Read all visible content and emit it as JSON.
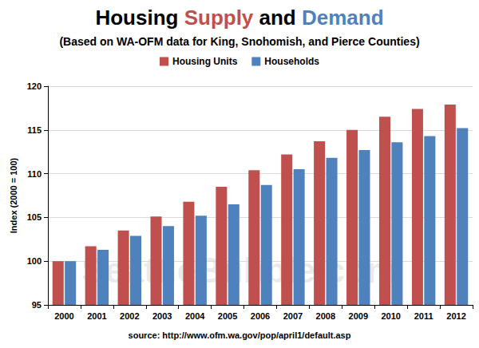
{
  "chart_data": {
    "type": "bar",
    "title": "Housing Supply and Demand",
    "subtitle": "(Based on WA-OFM data for King, Snohomish, and Pierce Counties)",
    "y_label": "Index (2000 = 100)",
    "source": "source: http://www.ofm.wa.gov/pop/april1/default.asp",
    "watermark": "SeattleBubble.com",
    "categories": [
      "2000",
      "2001",
      "2002",
      "2003",
      "2004",
      "2005",
      "2006",
      "2007",
      "2008",
      "2009",
      "2010",
      "2011",
      "2012"
    ],
    "series": [
      {
        "name": "Housing Units",
        "color": "#c0504d",
        "values": [
          100,
          101.7,
          103.5,
          105.1,
          106.8,
          108.5,
          110.4,
          112.2,
          113.7,
          115.0,
          116.5,
          117.4,
          117.9
        ]
      },
      {
        "name": "Households",
        "color": "#4f81bd",
        "values": [
          100,
          101.3,
          102.9,
          104.0,
          105.2,
          106.5,
          108.7,
          110.5,
          111.8,
          112.7,
          113.6,
          114.3,
          115.2
        ]
      }
    ],
    "ylim": [
      95,
      120
    ],
    "yticks": [
      95,
      100,
      105,
      110,
      115,
      120
    ],
    "grid": true,
    "legend": "top"
  }
}
